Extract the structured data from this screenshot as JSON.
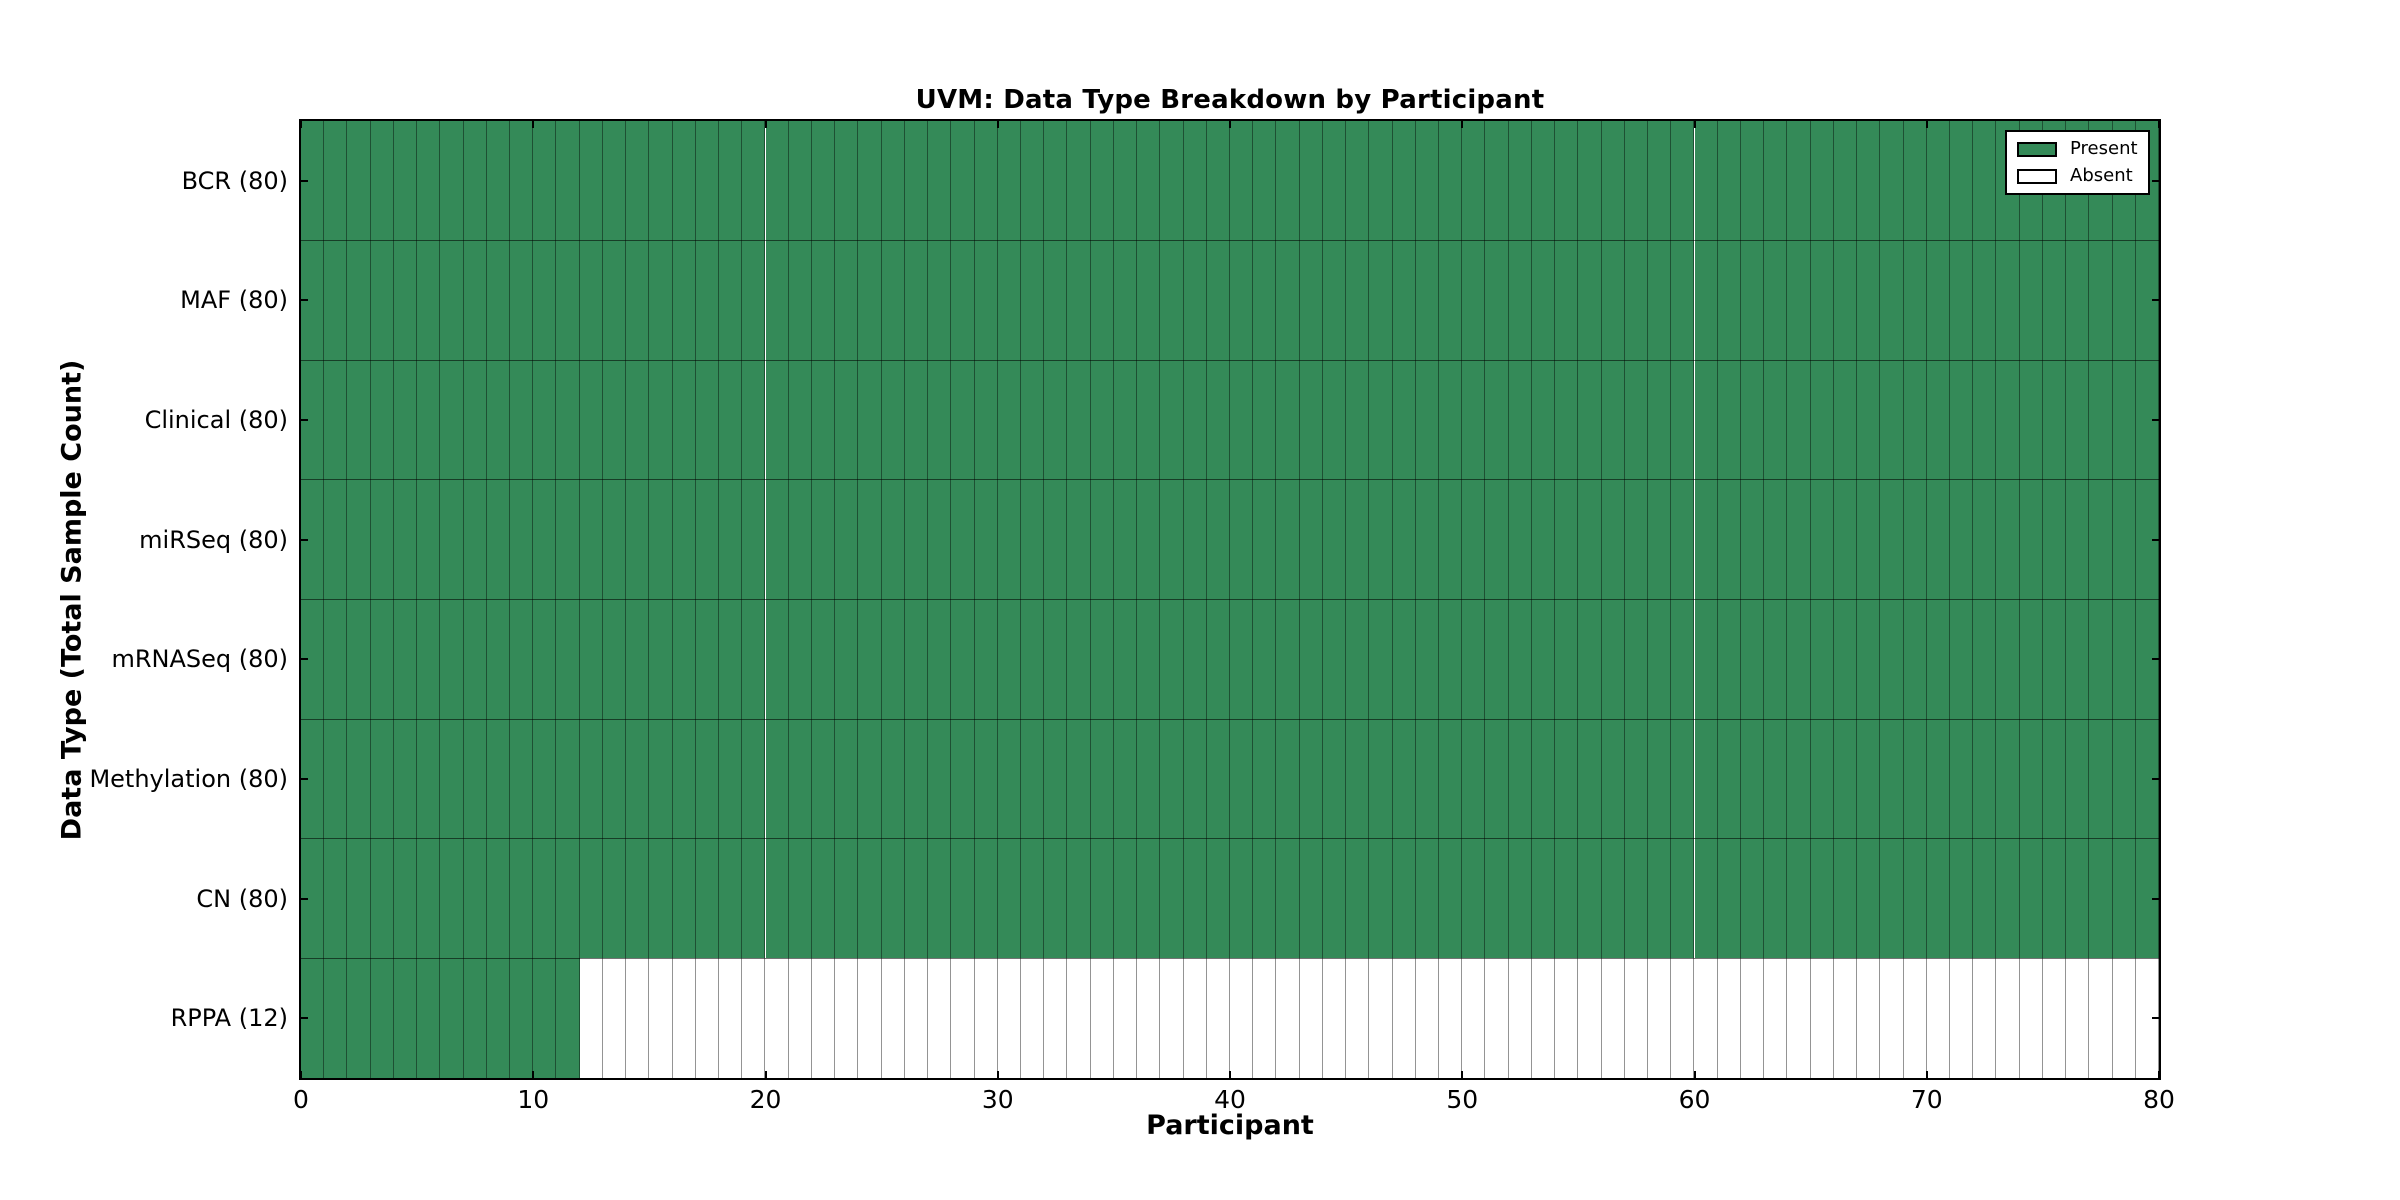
{
  "chart_data": {
    "type": "heatmap",
    "title": "UVM: Data Type Breakdown by Participant",
    "xlabel": "Participant",
    "ylabel": "Data Type (Total Sample Count)",
    "xlim": [
      0,
      80
    ],
    "x_ticks": [
      0,
      10,
      20,
      30,
      40,
      50,
      60,
      70,
      80
    ],
    "n_participants": 80,
    "grid": "cell-borders",
    "rows": [
      {
        "label": "BCR (80)",
        "data_type": "BCR",
        "total_sample_count": 80,
        "present_count": 80,
        "absent_count": 0
      },
      {
        "label": "MAF (80)",
        "data_type": "MAF",
        "total_sample_count": 80,
        "present_count": 80,
        "absent_count": 0
      },
      {
        "label": "Clinical (80)",
        "data_type": "Clinical",
        "total_sample_count": 80,
        "present_count": 80,
        "absent_count": 0
      },
      {
        "label": "miRSeq (80)",
        "data_type": "miRSeq",
        "total_sample_count": 80,
        "present_count": 80,
        "absent_count": 0
      },
      {
        "label": "mRNASeq (80)",
        "data_type": "mRNASeq",
        "total_sample_count": 80,
        "present_count": 80,
        "absent_count": 0
      },
      {
        "label": "Methylation (80)",
        "data_type": "Methylation",
        "total_sample_count": 80,
        "present_count": 80,
        "absent_count": 0
      },
      {
        "label": "CN (80)",
        "data_type": "CN",
        "total_sample_count": 80,
        "present_count": 80,
        "absent_count": 0
      },
      {
        "label": "RPPA (12)",
        "data_type": "RPPA",
        "total_sample_count": 12,
        "present_count": 12,
        "absent_count": 68
      }
    ],
    "legend": {
      "position": "upper-right",
      "entries": [
        {
          "label": "Present",
          "color": "#348a58"
        },
        {
          "label": "Absent",
          "color": "#ffffff"
        }
      ]
    },
    "colors": {
      "present": "#348a58",
      "absent": "#ffffff",
      "cell_edge": "rgba(0,0,0,0.42)",
      "row_separator": "rgba(0,0,0,0.55)",
      "axis": "#000000",
      "background": "#ffffff"
    }
  }
}
